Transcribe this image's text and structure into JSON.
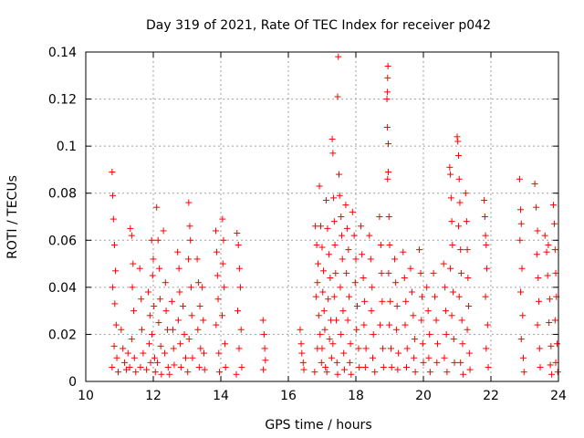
{
  "chart_data": {
    "type": "scatter",
    "title": "Day 319 of 2021, Rate Of TEC Index for receiver p042",
    "xlabel": "GPS time / hours",
    "ylabel": "ROTI / TECUs",
    "xlim": [
      10,
      24
    ],
    "ylim": [
      0,
      0.14
    ],
    "x_ticks": [
      10,
      12,
      14,
      16,
      18,
      20,
      22,
      24
    ],
    "y_ticks": [
      0,
      0.02,
      0.04,
      0.06,
      0.08,
      0.1,
      0.12,
      0.14
    ],
    "x_tick_labels": [
      "10",
      "12",
      "14",
      "16",
      "18",
      "20",
      "22",
      "24"
    ],
    "y_tick_labels": [
      "0",
      "0.02",
      "0.04",
      "0.06",
      "0.08",
      "0.1",
      "0.12",
      "0.14"
    ],
    "grid": true,
    "marker": "+",
    "color": "#ff0000",
    "points": [
      [
        10.78,
        0.089
      ],
      [
        10.8,
        0.079
      ],
      [
        10.82,
        0.069
      ],
      [
        10.85,
        0.058
      ],
      [
        10.88,
        0.047
      ],
      [
        10.8,
        0.04
      ],
      [
        10.86,
        0.033
      ],
      [
        10.9,
        0.024
      ],
      [
        10.84,
        0.015
      ],
      [
        10.92,
        0.01
      ],
      [
        10.78,
        0.006
      ],
      [
        10.96,
        0.004
      ],
      [
        11.05,
        0.022
      ],
      [
        11.1,
        0.014
      ],
      [
        11.15,
        0.008
      ],
      [
        11.2,
        0.005
      ],
      [
        11.25,
        0.012
      ],
      [
        11.32,
        0.065
      ],
      [
        11.36,
        0.062
      ],
      [
        11.4,
        0.05
      ],
      [
        11.38,
        0.04
      ],
      [
        11.42,
        0.03
      ],
      [
        11.36,
        0.018
      ],
      [
        11.44,
        0.01
      ],
      [
        11.3,
        0.006
      ],
      [
        11.48,
        0.004
      ],
      [
        11.6,
        0.048
      ],
      [
        11.64,
        0.035
      ],
      [
        11.66,
        0.022
      ],
      [
        11.7,
        0.012
      ],
      [
        11.62,
        0.006
      ],
      [
        11.85,
        0.038
      ],
      [
        11.9,
        0.028
      ],
      [
        11.88,
        0.016
      ],
      [
        11.92,
        0.008
      ],
      [
        11.8,
        0.005
      ],
      [
        11.95,
        0.06
      ],
      [
        12.0,
        0.052
      ],
      [
        11.98,
        0.045
      ],
      [
        12.02,
        0.032
      ],
      [
        11.96,
        0.02
      ],
      [
        12.04,
        0.01
      ],
      [
        12.06,
        0.004
      ],
      [
        12.1,
        0.074
      ],
      [
        12.14,
        0.06
      ],
      [
        12.18,
        0.048
      ],
      [
        12.2,
        0.035
      ],
      [
        12.16,
        0.025
      ],
      [
        12.22,
        0.015
      ],
      [
        12.12,
        0.008
      ],
      [
        12.24,
        0.003
      ],
      [
        12.3,
        0.064
      ],
      [
        12.36,
        0.042
      ],
      [
        12.38,
        0.03
      ],
      [
        12.42,
        0.022
      ],
      [
        12.34,
        0.012
      ],
      [
        12.44,
        0.006
      ],
      [
        12.48,
        0.003
      ],
      [
        12.55,
        0.034
      ],
      [
        12.58,
        0.022
      ],
      [
        12.6,
        0.014
      ],
      [
        12.62,
        0.007
      ],
      [
        12.72,
        0.055
      ],
      [
        12.76,
        0.048
      ],
      [
        12.78,
        0.038
      ],
      [
        12.74,
        0.026
      ],
      [
        12.8,
        0.016
      ],
      [
        12.82,
        0.006
      ],
      [
        12.88,
        0.032
      ],
      [
        12.92,
        0.02
      ],
      [
        12.96,
        0.01
      ],
      [
        13.05,
        0.076
      ],
      [
        13.08,
        0.066
      ],
      [
        13.1,
        0.06
      ],
      [
        13.04,
        0.052
      ],
      [
        13.12,
        0.04
      ],
      [
        13.14,
        0.028
      ],
      [
        13.06,
        0.018
      ],
      [
        13.16,
        0.01
      ],
      [
        13.02,
        0.004
      ],
      [
        13.3,
        0.052
      ],
      [
        13.34,
        0.042
      ],
      [
        13.38,
        0.032
      ],
      [
        13.32,
        0.022
      ],
      [
        13.4,
        0.014
      ],
      [
        13.36,
        0.006
      ],
      [
        13.45,
        0.04
      ],
      [
        13.48,
        0.026
      ],
      [
        13.5,
        0.012
      ],
      [
        13.52,
        0.005
      ],
      [
        13.85,
        0.064
      ],
      [
        13.88,
        0.055
      ],
      [
        13.9,
        0.045
      ],
      [
        13.92,
        0.035
      ],
      [
        13.86,
        0.024
      ],
      [
        13.94,
        0.012
      ],
      [
        13.96,
        0.004
      ],
      [
        14.05,
        0.069
      ],
      [
        14.08,
        0.06
      ],
      [
        14.06,
        0.05
      ],
      [
        14.1,
        0.04
      ],
      [
        14.04,
        0.028
      ],
      [
        14.12,
        0.016
      ],
      [
        14.14,
        0.006
      ],
      [
        14.48,
        0.063
      ],
      [
        14.52,
        0.058
      ],
      [
        14.55,
        0.048
      ],
      [
        14.58,
        0.04
      ],
      [
        14.5,
        0.03
      ],
      [
        14.6,
        0.022
      ],
      [
        14.54,
        0.014
      ],
      [
        14.62,
        0.006
      ],
      [
        14.46,
        0.003
      ],
      [
        15.25,
        0.026
      ],
      [
        15.28,
        0.02
      ],
      [
        15.3,
        0.014
      ],
      [
        15.32,
        0.009
      ],
      [
        15.26,
        0.005
      ],
      [
        16.35,
        0.022
      ],
      [
        16.38,
        0.016
      ],
      [
        16.4,
        0.012
      ],
      [
        16.44,
        0.008
      ],
      [
        16.46,
        0.005
      ],
      [
        16.8,
        0.066
      ],
      [
        16.84,
        0.058
      ],
      [
        16.88,
        0.05
      ],
      [
        16.86,
        0.042
      ],
      [
        16.82,
        0.036
      ],
      [
        16.9,
        0.028
      ],
      [
        16.94,
        0.02
      ],
      [
        16.86,
        0.014
      ],
      [
        16.98,
        0.008
      ],
      [
        16.78,
        0.004
      ],
      [
        16.92,
        0.083
      ],
      [
        16.96,
        0.066
      ],
      [
        17.0,
        0.057
      ],
      [
        17.04,
        0.047
      ],
      [
        17.02,
        0.038
      ],
      [
        17.06,
        0.03
      ],
      [
        17.08,
        0.022
      ],
      [
        17.0,
        0.014
      ],
      [
        17.1,
        0.006
      ],
      [
        17.12,
        0.077
      ],
      [
        17.16,
        0.065
      ],
      [
        17.2,
        0.054
      ],
      [
        17.24,
        0.044
      ],
      [
        17.18,
        0.035
      ],
      [
        17.26,
        0.026
      ],
      [
        17.22,
        0.018
      ],
      [
        17.28,
        0.01
      ],
      [
        17.14,
        0.004
      ],
      [
        17.3,
        0.103
      ],
      [
        17.32,
        0.097
      ],
      [
        17.34,
        0.078
      ],
      [
        17.36,
        0.068
      ],
      [
        17.38,
        0.058
      ],
      [
        17.4,
        0.046
      ],
      [
        17.36,
        0.036
      ],
      [
        17.42,
        0.026
      ],
      [
        17.32,
        0.016
      ],
      [
        17.44,
        0.008
      ],
      [
        17.46,
        0.003
      ],
      [
        17.48,
        0.138
      ],
      [
        17.46,
        0.121
      ],
      [
        17.5,
        0.088
      ],
      [
        17.52,
        0.079
      ],
      [
        17.56,
        0.07
      ],
      [
        17.58,
        0.062
      ],
      [
        17.6,
        0.052
      ],
      [
        17.54,
        0.04
      ],
      [
        17.62,
        0.03
      ],
      [
        17.56,
        0.02
      ],
      [
        17.64,
        0.012
      ],
      [
        17.66,
        0.005
      ],
      [
        17.7,
        0.075
      ],
      [
        17.74,
        0.065
      ],
      [
        17.78,
        0.056
      ],
      [
        17.72,
        0.046
      ],
      [
        17.8,
        0.036
      ],
      [
        17.76,
        0.026
      ],
      [
        17.84,
        0.016
      ],
      [
        17.82,
        0.008
      ],
      [
        17.86,
        0.003
      ],
      [
        17.9,
        0.072
      ],
      [
        17.95,
        0.062
      ],
      [
        18.0,
        0.052
      ],
      [
        17.98,
        0.042
      ],
      [
        18.04,
        0.032
      ],
      [
        18.02,
        0.022
      ],
      [
        18.08,
        0.014
      ],
      [
        18.1,
        0.006
      ],
      [
        18.15,
        0.066
      ],
      [
        18.18,
        0.054
      ],
      [
        18.22,
        0.044
      ],
      [
        18.26,
        0.034
      ],
      [
        18.24,
        0.024
      ],
      [
        18.3,
        0.014
      ],
      [
        18.28,
        0.006
      ],
      [
        18.4,
        0.062
      ],
      [
        18.44,
        0.052
      ],
      [
        18.48,
        0.04
      ],
      [
        18.46,
        0.03
      ],
      [
        18.52,
        0.02
      ],
      [
        18.5,
        0.01
      ],
      [
        18.56,
        0.004
      ],
      [
        18.7,
        0.07
      ],
      [
        18.74,
        0.058
      ],
      [
        18.76,
        0.046
      ],
      [
        18.78,
        0.034
      ],
      [
        18.72,
        0.024
      ],
      [
        18.8,
        0.014
      ],
      [
        18.82,
        0.006
      ],
      [
        18.95,
        0.134
      ],
      [
        18.94,
        0.129
      ],
      [
        18.93,
        0.123
      ],
      [
        18.92,
        0.12
      ],
      [
        18.93,
        0.108
      ],
      [
        18.96,
        0.101
      ],
      [
        18.96,
        0.089
      ],
      [
        18.94,
        0.086
      ],
      [
        18.98,
        0.07
      ],
      [
        19.0,
        0.058
      ],
      [
        18.97,
        0.046
      ],
      [
        19.02,
        0.034
      ],
      [
        18.99,
        0.024
      ],
      [
        19.04,
        0.014
      ],
      [
        19.06,
        0.006
      ],
      [
        19.15,
        0.052
      ],
      [
        19.18,
        0.042
      ],
      [
        19.22,
        0.032
      ],
      [
        19.2,
        0.022
      ],
      [
        19.26,
        0.012
      ],
      [
        19.24,
        0.005
      ],
      [
        19.4,
        0.055
      ],
      [
        19.44,
        0.044
      ],
      [
        19.48,
        0.034
      ],
      [
        19.46,
        0.024
      ],
      [
        19.52,
        0.014
      ],
      [
        19.5,
        0.006
      ],
      [
        19.62,
        0.048
      ],
      [
        19.66,
        0.038
      ],
      [
        19.7,
        0.028
      ],
      [
        19.74,
        0.018
      ],
      [
        19.72,
        0.01
      ],
      [
        19.76,
        0.004
      ],
      [
        19.88,
        0.056
      ],
      [
        19.92,
        0.046
      ],
      [
        19.96,
        0.036
      ],
      [
        19.94,
        0.026
      ],
      [
        19.98,
        0.016
      ],
      [
        20.0,
        0.008
      ],
      [
        20.1,
        0.04
      ],
      [
        20.14,
        0.03
      ],
      [
        20.18,
        0.02
      ],
      [
        20.16,
        0.01
      ],
      [
        20.2,
        0.004
      ],
      [
        20.3,
        0.046
      ],
      [
        20.34,
        0.036
      ],
      [
        20.38,
        0.026
      ],
      [
        20.42,
        0.016
      ],
      [
        20.4,
        0.008
      ],
      [
        20.6,
        0.05
      ],
      [
        20.64,
        0.04
      ],
      [
        20.66,
        0.03
      ],
      [
        20.68,
        0.02
      ],
      [
        20.62,
        0.01
      ],
      [
        20.7,
        0.004
      ],
      [
        20.78,
        0.091
      ],
      [
        20.8,
        0.088
      ],
      [
        20.82,
        0.078
      ],
      [
        20.84,
        0.068
      ],
      [
        20.86,
        0.058
      ],
      [
        20.8,
        0.048
      ],
      [
        20.88,
        0.038
      ],
      [
        20.84,
        0.028
      ],
      [
        20.9,
        0.018
      ],
      [
        20.92,
        0.008
      ],
      [
        21.0,
        0.104
      ],
      [
        21.02,
        0.102
      ],
      [
        21.04,
        0.096
      ],
      [
        21.06,
        0.086
      ],
      [
        21.08,
        0.076
      ],
      [
        21.04,
        0.066
      ],
      [
        21.1,
        0.056
      ],
      [
        21.12,
        0.046
      ],
      [
        21.06,
        0.036
      ],
      [
        21.14,
        0.026
      ],
      [
        21.16,
        0.016
      ],
      [
        21.1,
        0.008
      ],
      [
        21.18,
        0.003
      ],
      [
        21.25,
        0.08
      ],
      [
        21.28,
        0.068
      ],
      [
        21.3,
        0.056
      ],
      [
        21.32,
        0.044
      ],
      [
        21.34,
        0.032
      ],
      [
        21.3,
        0.022
      ],
      [
        21.36,
        0.012
      ],
      [
        21.38,
        0.005
      ],
      [
        21.8,
        0.077
      ],
      [
        21.82,
        0.07
      ],
      [
        21.84,
        0.062
      ],
      [
        21.86,
        0.058
      ],
      [
        21.88,
        0.048
      ],
      [
        21.84,
        0.036
      ],
      [
        21.9,
        0.024
      ],
      [
        21.86,
        0.014
      ],
      [
        21.92,
        0.006
      ],
      [
        22.85,
        0.086
      ],
      [
        22.88,
        0.073
      ],
      [
        22.9,
        0.067
      ],
      [
        22.86,
        0.06
      ],
      [
        22.92,
        0.048
      ],
      [
        22.88,
        0.038
      ],
      [
        22.94,
        0.028
      ],
      [
        22.9,
        0.018
      ],
      [
        22.96,
        0.01
      ],
      [
        22.98,
        0.004
      ],
      [
        23.3,
        0.084
      ],
      [
        23.34,
        0.074
      ],
      [
        23.38,
        0.064
      ],
      [
        23.36,
        0.054
      ],
      [
        23.4,
        0.044
      ],
      [
        23.42,
        0.034
      ],
      [
        23.38,
        0.024
      ],
      [
        23.44,
        0.014
      ],
      [
        23.46,
        0.006
      ],
      [
        23.6,
        0.062
      ],
      [
        23.65,
        0.055
      ],
      [
        23.7,
        0.058
      ],
      [
        23.68,
        0.045
      ],
      [
        23.74,
        0.035
      ],
      [
        23.72,
        0.025
      ],
      [
        23.78,
        0.015
      ],
      [
        23.76,
        0.007
      ],
      [
        23.8,
        0.003
      ],
      [
        23.85,
        0.075
      ],
      [
        23.88,
        0.067
      ],
      [
        23.9,
        0.056
      ],
      [
        23.92,
        0.046
      ],
      [
        23.94,
        0.036
      ],
      [
        23.9,
        0.026
      ],
      [
        23.96,
        0.016
      ],
      [
        23.92,
        0.008
      ],
      [
        23.98,
        0.004
      ]
    ]
  }
}
